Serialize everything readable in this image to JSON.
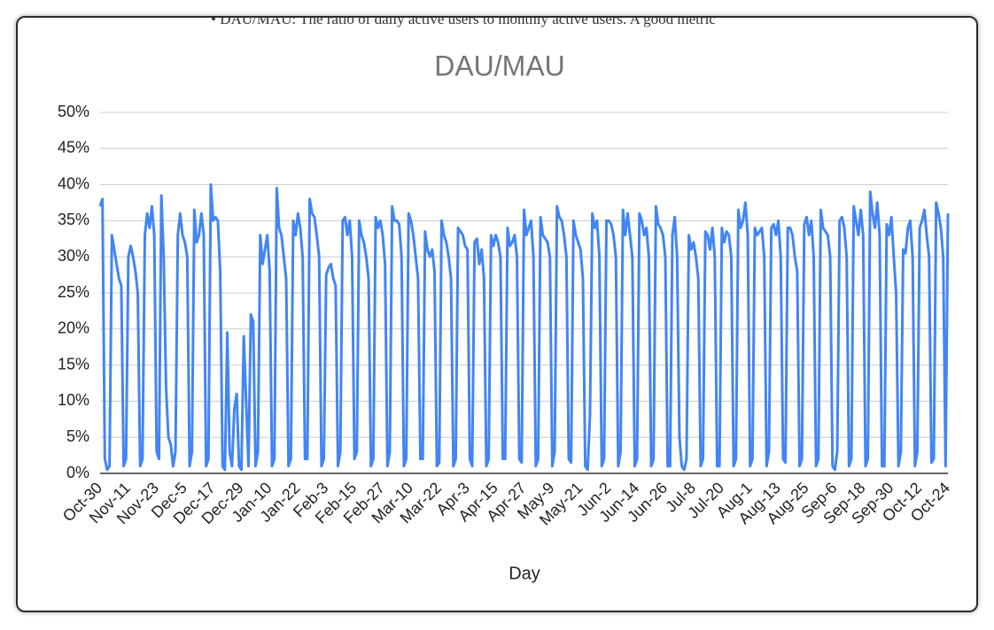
{
  "page_text": "•   DAU/MAU: The ratio of daily active users to monthly active users. A good metric",
  "chart_data": {
    "type": "line",
    "title": "DAU/MAU",
    "x_label": "Day",
    "color": "#4285f4",
    "grid": true,
    "ylim": [
      0,
      50
    ],
    "yticks": [
      {
        "value": 0,
        "label": "0%"
      },
      {
        "value": 5,
        "label": "5%"
      },
      {
        "value": 10,
        "label": "10%"
      },
      {
        "value": 15,
        "label": "15%"
      },
      {
        "value": 20,
        "label": "20%"
      },
      {
        "value": 25,
        "label": "25%"
      },
      {
        "value": 30,
        "label": "30%"
      },
      {
        "value": 35,
        "label": "35%"
      },
      {
        "value": 40,
        "label": "40%"
      },
      {
        "value": 45,
        "label": "45%"
      },
      {
        "value": 50,
        "label": "50%"
      }
    ],
    "categories": [
      "Oct-30",
      null,
      null,
      null,
      null,
      null,
      null,
      null,
      null,
      null,
      null,
      null,
      "Nov-11",
      null,
      null,
      null,
      null,
      null,
      null,
      null,
      null,
      null,
      null,
      null,
      "Nov-23",
      null,
      null,
      null,
      null,
      null,
      null,
      null,
      null,
      null,
      null,
      null,
      "Dec-5",
      null,
      null,
      null,
      null,
      null,
      null,
      null,
      null,
      null,
      null,
      null,
      "Dec-17",
      null,
      null,
      null,
      null,
      null,
      null,
      null,
      null,
      null,
      null,
      null,
      "Dec-29",
      null,
      null,
      null,
      null,
      null,
      null,
      null,
      null,
      null,
      null,
      null,
      "Jan-10",
      null,
      null,
      null,
      null,
      null,
      null,
      null,
      null,
      null,
      null,
      null,
      "Jan-22",
      null,
      null,
      null,
      null,
      null,
      null,
      null,
      null,
      null,
      null,
      null,
      "Feb-3",
      null,
      null,
      null,
      null,
      null,
      null,
      null,
      null,
      null,
      null,
      null,
      "Feb-15",
      null,
      null,
      null,
      null,
      null,
      null,
      null,
      null,
      null,
      null,
      null,
      "Feb-27",
      null,
      null,
      null,
      null,
      null,
      null,
      null,
      null,
      null,
      null,
      null,
      "Mar-10",
      null,
      null,
      null,
      null,
      null,
      null,
      null,
      null,
      null,
      null,
      null,
      "Mar-22",
      null,
      null,
      null,
      null,
      null,
      null,
      null,
      null,
      null,
      null,
      null,
      "Apr-3",
      null,
      null,
      null,
      null,
      null,
      null,
      null,
      null,
      null,
      null,
      null,
      "Apr-15",
      null,
      null,
      null,
      null,
      null,
      null,
      null,
      null,
      null,
      null,
      null,
      "Apr-27",
      null,
      null,
      null,
      null,
      null,
      null,
      null,
      null,
      null,
      null,
      null,
      "May-9",
      null,
      null,
      null,
      null,
      null,
      null,
      null,
      null,
      null,
      null,
      null,
      "May-21",
      null,
      null,
      null,
      null,
      null,
      null,
      null,
      null,
      null,
      null,
      null,
      "Jun-2",
      null,
      null,
      null,
      null,
      null,
      null,
      null,
      null,
      null,
      null,
      null,
      "Jun-14",
      null,
      null,
      null,
      null,
      null,
      null,
      null,
      null,
      null,
      null,
      null,
      "Jun-26",
      null,
      null,
      null,
      null,
      null,
      null,
      null,
      null,
      null,
      null,
      null,
      "Jul-8",
      null,
      null,
      null,
      null,
      null,
      null,
      null,
      null,
      null,
      null,
      null,
      "Jul-20",
      null,
      null,
      null,
      null,
      null,
      null,
      null,
      null,
      null,
      null,
      null,
      "Aug-1",
      null,
      null,
      null,
      null,
      null,
      null,
      null,
      null,
      null,
      null,
      null,
      "Aug-13",
      null,
      null,
      null,
      null,
      null,
      null,
      null,
      null,
      null,
      null,
      null,
      "Aug-25",
      null,
      null,
      null,
      null,
      null,
      null,
      null,
      null,
      null,
      null,
      null,
      "Sep-6",
      null,
      null,
      null,
      null,
      null,
      null,
      null,
      null,
      null,
      null,
      null,
      "Sep-18",
      null,
      null,
      null,
      null,
      null,
      null,
      null,
      null,
      null,
      null,
      null,
      "Sep-30",
      null,
      null,
      null,
      null,
      null,
      null,
      null,
      null,
      null,
      null,
      null,
      "Oct-12",
      null,
      null,
      null,
      null,
      null,
      null,
      null,
      null,
      null,
      null,
      null,
      "Oct-24"
    ],
    "values": [
      37,
      38,
      2,
      0.5,
      1,
      33,
      31,
      29,
      27,
      26,
      1,
      2,
      30,
      31.5,
      30,
      28,
      25,
      1,
      2,
      33,
      36,
      34,
      37,
      33,
      3,
      2,
      38.5,
      30,
      12,
      5,
      4,
      1,
      3,
      33,
      36,
      33,
      32,
      30,
      1,
      3,
      36.5,
      32,
      33,
      36,
      33,
      1,
      2,
      40,
      35,
      35.5,
      35,
      28,
      1,
      0.5,
      19.5,
      3,
      1,
      9,
      11,
      1,
      0.5,
      19,
      10,
      1,
      22,
      21,
      1,
      3,
      33,
      29,
      31,
      33,
      28,
      1,
      2,
      39.5,
      34,
      33,
      30,
      27,
      1,
      2,
      35,
      33,
      36,
      34,
      30,
      2,
      2,
      38,
      36,
      35.5,
      33,
      30,
      1,
      2,
      27.5,
      28.5,
      29,
      27,
      26,
      1,
      3,
      35,
      35.5,
      33,
      35,
      30,
      2,
      3,
      35,
      33,
      32,
      30,
      27,
      1,
      2,
      35.5,
      34,
      35,
      33,
      29,
      1,
      3,
      37,
      35,
      35,
      34.5,
      30,
      1,
      2,
      36,
      35,
      33,
      30,
      27,
      2,
      2,
      33.5,
      31,
      30,
      31,
      28,
      1,
      1.5,
      35,
      33,
      32,
      30,
      27,
      1,
      2,
      34,
      33.5,
      33,
      31.5,
      31,
      2,
      1,
      32,
      32.5,
      29,
      31,
      27,
      1,
      2,
      33,
      31.5,
      33,
      32,
      30,
      2,
      2,
      34,
      31.5,
      32,
      33,
      30,
      2,
      1.5,
      36.5,
      33,
      34,
      35,
      30,
      1,
      2,
      35.5,
      33,
      32.5,
      32,
      30,
      1,
      3,
      37,
      35.5,
      35,
      33,
      30,
      2,
      1.5,
      35,
      33,
      32,
      31,
      27,
      1,
      0.5,
      8,
      36,
      34,
      35,
      30,
      1,
      2,
      35,
      35,
      34.5,
      33,
      30,
      1,
      3,
      36.5,
      33,
      36,
      33,
      30,
      1,
      2,
      36,
      35,
      33,
      34,
      30,
      1,
      2,
      37,
      34.5,
      34,
      33,
      30,
      1,
      1,
      33,
      35.5,
      30,
      5,
      1,
      0.5,
      2,
      33,
      31,
      32,
      30,
      27,
      1,
      2,
      33.5,
      33,
      31,
      34,
      30,
      1,
      1,
      34,
      32,
      33.5,
      33,
      30,
      1,
      2,
      36.5,
      34,
      35,
      37.5,
      33,
      1,
      2,
      34,
      33,
      33.5,
      34,
      30,
      1,
      3,
      34,
      34.5,
      33,
      35,
      30,
      2,
      1.5,
      34,
      34,
      33,
      30,
      28,
      1,
      2,
      34.5,
      35.5,
      33,
      35,
      30,
      1,
      2,
      36.5,
      34,
      33.5,
      33,
      30,
      1,
      0.5,
      3,
      35,
      35.5,
      34,
      30,
      1,
      2,
      37,
      35,
      33,
      36.5,
      33,
      1,
      2,
      39,
      36,
      34,
      37.5,
      33,
      1,
      1,
      34.5,
      33,
      35.5,
      30,
      25,
      1,
      3,
      31,
      30.5,
      34,
      35,
      30,
      1,
      3,
      34,
      35,
      36.5,
      33,
      30,
      1.5,
      2,
      37.5,
      36,
      34,
      30,
      1,
      36
    ]
  }
}
